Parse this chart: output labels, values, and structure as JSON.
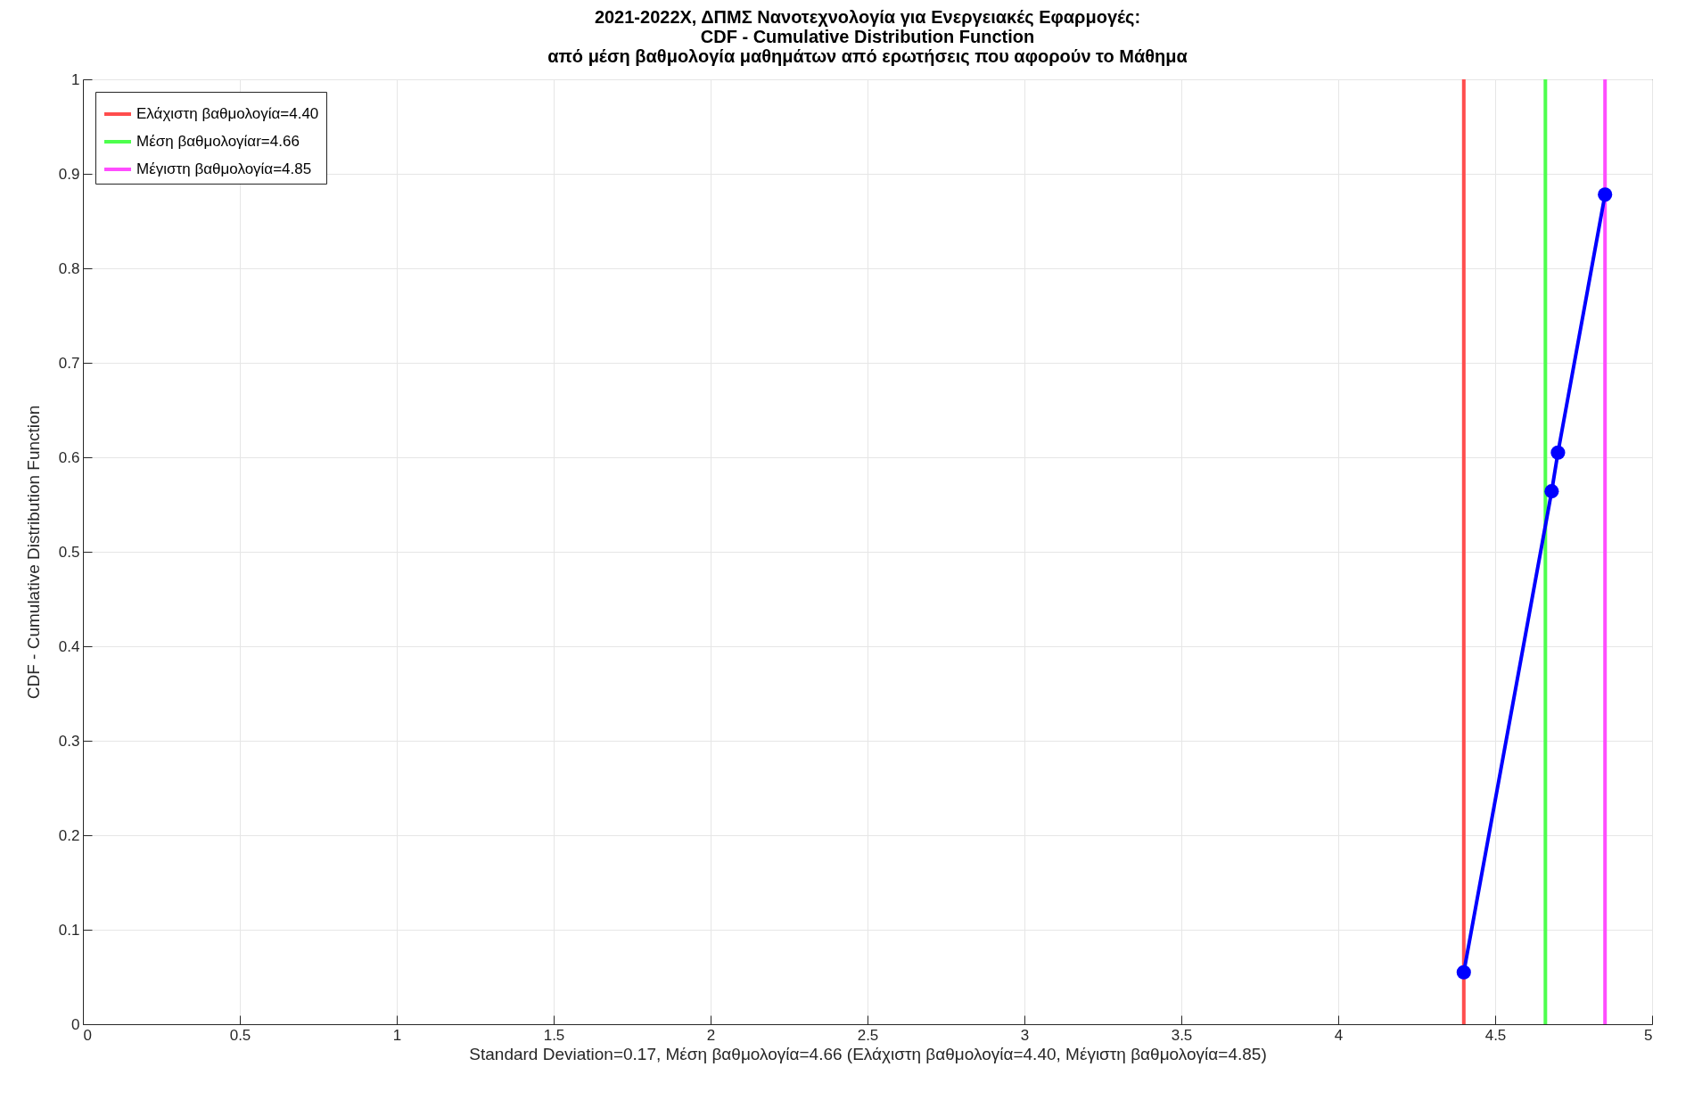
{
  "chart_data": {
    "type": "line",
    "title": "2021-2022Χ, ΔΠΜΣ Νανοτεχνολογία για Ενεργειακές Εφαρμογές:\nCDF - Cumulative Distribution Function\nαπό μέση βαθμολογία μαθημάτων από ερωτήσεις που αφορούν το Μάθημα",
    "xlabel": "Standard Deviation=0.17, Μέση βαθμολογία=4.66  (Ελάχιστη βαθμολογία=4.40, Μέγιστη βαθμολογία=4.85)",
    "ylabel": "CDF - Cumulative Distribution Function",
    "x": [
      4.4,
      4.68,
      4.7,
      4.85
    ],
    "series": [
      {
        "name": "Ελάχιστη βαθμολογία=4.40",
        "color": "#ff4d4d",
        "x": [
          4.4,
          4.4
        ],
        "values": [
          0,
          1
        ],
        "marker": "none"
      },
      {
        "name": "Μέση βαθμολογίαr=4.66",
        "color": "#4dff4d",
        "x": [
          4.66,
          4.66
        ],
        "values": [
          0,
          1
        ],
        "marker": "none"
      },
      {
        "name": "Μέγιστη βαθμολογία=4.85",
        "color": "#ff4dff",
        "x": [
          4.85,
          4.85
        ],
        "values": [
          0,
          1
        ],
        "marker": "none"
      },
      {
        "color": "#0000ff",
        "values": [
          0.055,
          0.564,
          0.605,
          0.878
        ]
      }
    ],
    "xlim": [
      0,
      5
    ],
    "xticks": [
      0,
      0.5,
      1,
      1.5,
      2,
      2.5,
      3,
      3.5,
      4,
      4.5,
      5
    ],
    "ylim": [
      0,
      1
    ],
    "yticks": [
      0,
      0.1,
      0.2,
      0.3,
      0.4,
      0.5,
      0.6,
      0.7,
      0.8,
      0.9,
      1
    ],
    "grid": true,
    "legend": "top left",
    "marker": "circle",
    "line_style": "solid"
  }
}
